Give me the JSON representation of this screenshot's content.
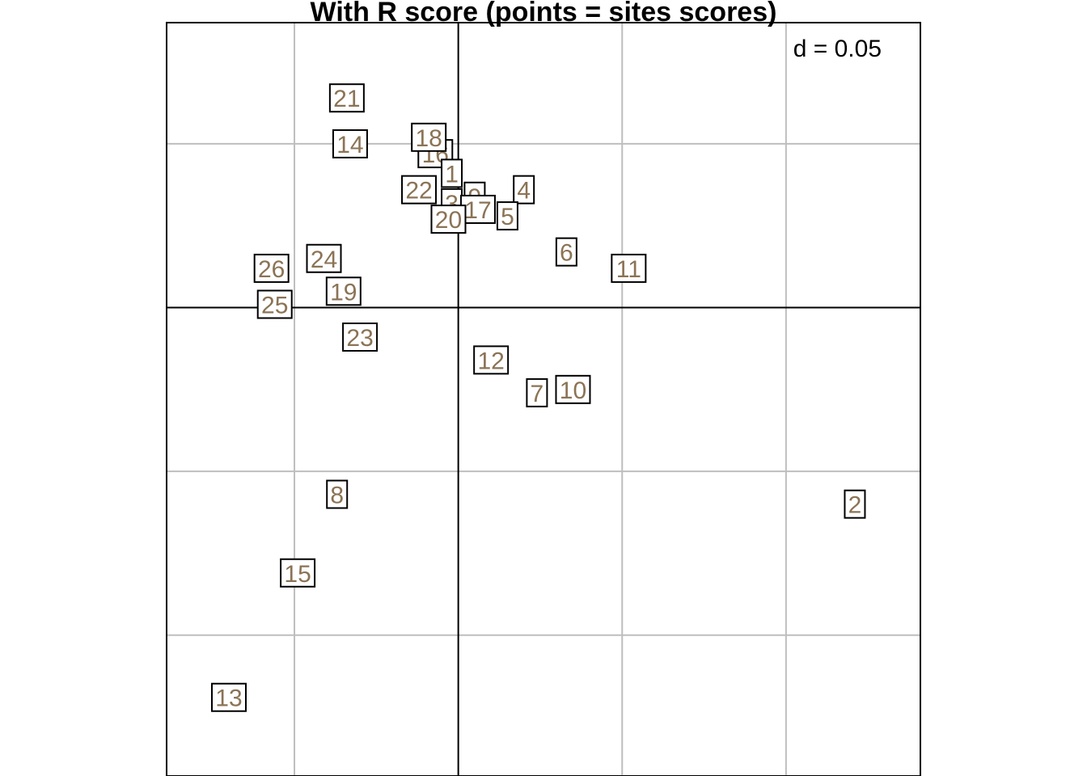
{
  "chart_data": {
    "type": "scatter",
    "title": "With R score (points = sites scores)",
    "scale_label": "d = 0.05",
    "grid_step": 0.05,
    "xlim": [
      -0.089,
      0.141
    ],
    "ylim": [
      -0.143,
      0.087
    ],
    "label_color": "#8B7355",
    "points": [
      {
        "label": "21",
        "x": -0.034,
        "y": 0.064
      },
      {
        "label": "14",
        "x": -0.033,
        "y": 0.05
      },
      {
        "label": "16",
        "x": -0.007,
        "y": 0.047
      },
      {
        "label": "18",
        "x": -0.009,
        "y": 0.052
      },
      {
        "label": "1",
        "x": -0.002,
        "y": 0.041
      },
      {
        "label": "22",
        "x": -0.012,
        "y": 0.036
      },
      {
        "label": "9",
        "x": 0.005,
        "y": 0.034
      },
      {
        "label": "3",
        "x": -0.002,
        "y": 0.032
      },
      {
        "label": "4",
        "x": 0.02,
        "y": 0.036
      },
      {
        "label": "17",
        "x": 0.006,
        "y": 0.03
      },
      {
        "label": "5",
        "x": 0.015,
        "y": 0.028
      },
      {
        "label": "20",
        "x": -0.003,
        "y": 0.027
      },
      {
        "label": "6",
        "x": 0.033,
        "y": 0.017
      },
      {
        "label": "11",
        "x": 0.052,
        "y": 0.012
      },
      {
        "label": "24",
        "x": -0.041,
        "y": 0.015
      },
      {
        "label": "26",
        "x": -0.057,
        "y": 0.012
      },
      {
        "label": "19",
        "x": -0.035,
        "y": 0.005
      },
      {
        "label": "25",
        "x": -0.056,
        "y": 0.001
      },
      {
        "label": "23",
        "x": -0.03,
        "y": -0.009
      },
      {
        "label": "12",
        "x": 0.01,
        "y": -0.016
      },
      {
        "label": "7",
        "x": 0.024,
        "y": -0.026
      },
      {
        "label": "10",
        "x": 0.035,
        "y": -0.025
      },
      {
        "label": "8",
        "x": -0.037,
        "y": -0.057
      },
      {
        "label": "15",
        "x": -0.049,
        "y": -0.081
      },
      {
        "label": "13",
        "x": -0.07,
        "y": -0.119
      },
      {
        "label": "2",
        "x": 0.121,
        "y": -0.06
      }
    ]
  }
}
